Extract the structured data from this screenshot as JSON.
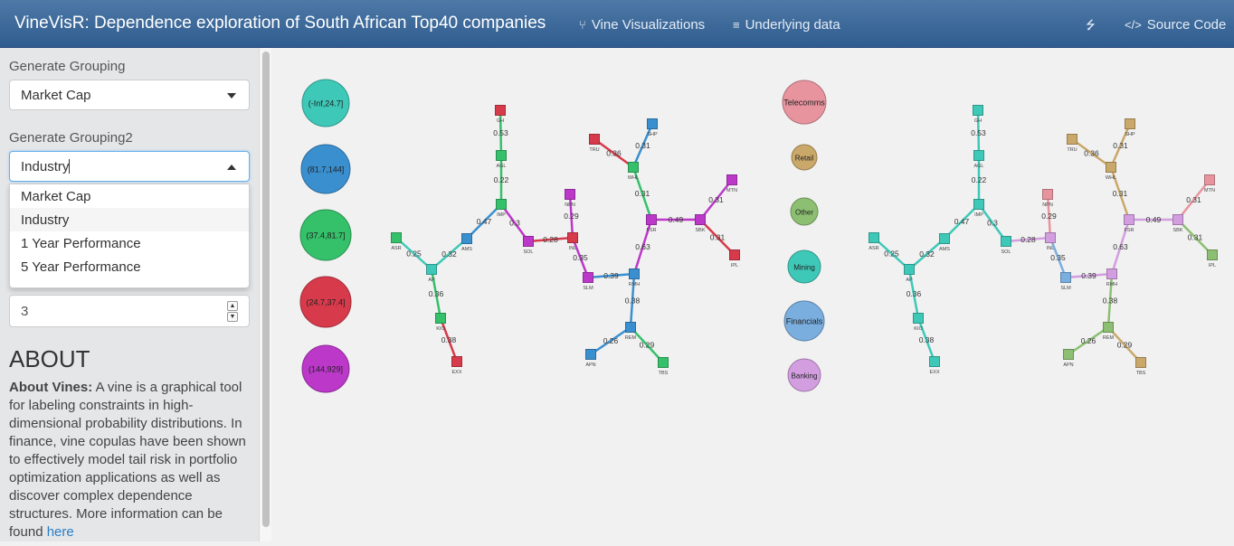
{
  "app": {
    "title": "VineVisR: Dependence exploration of South African Top40 companies",
    "nav": [
      {
        "label": "Vine Visualizations",
        "icon": "branch-icon"
      },
      {
        "label": "Underlying data",
        "icon": "database-icon"
      },
      {
        "label": "Source Code",
        "icon": "code-icon"
      }
    ],
    "share_icon": "share-icon"
  },
  "sidebar": {
    "grouping_label": "Generate Grouping",
    "grouping_value": "Market Cap",
    "grouping2_label": "Generate Grouping2",
    "grouping2_value": "Industry",
    "options": [
      "Market Cap",
      "Industry",
      "1 Year Performance",
      "5 Year Performance"
    ],
    "number_value": "3",
    "about_heading": "ABOUT",
    "about_bold": "About Vines:",
    "about_text": " A vine is a graphical tool for labeling constraints in high-dimensional probability distributions. In finance, vine copulas have been shown to effectively model tail risk in portfolio optimization applications as well as discover complex dependence structures. More information can be found ",
    "about_link": "here"
  },
  "legend1": [
    {
      "label": "(-Inf,24.7]",
      "color": "#3ec8b8"
    },
    {
      "label": "(81.7,144]",
      "color": "#3a8fcf"
    },
    {
      "label": "(37.4,81.7]",
      "color": "#35c06a"
    },
    {
      "label": "(24.7,37.4]",
      "color": "#d63a4b"
    },
    {
      "label": "(144,929]",
      "color": "#bb38c8"
    }
  ],
  "legend2": [
    {
      "label": "Telecomms",
      "color": "#e8949e"
    },
    {
      "label": "Retail",
      "color": "#c9a86a"
    },
    {
      "label": "Other",
      "color": "#8cbf72"
    },
    {
      "label": "Mining",
      "color": "#3ec8b8"
    },
    {
      "label": "Financials",
      "color": "#7aaede"
    },
    {
      "label": "Banking",
      "color": "#d29ee0"
    }
  ],
  "nodes": [
    {
      "id": "GH",
      "label": "GH"
    },
    {
      "id": "AGL",
      "label": "AGL"
    },
    {
      "id": "IMP",
      "label": "IMP"
    },
    {
      "id": "AMS",
      "label": "AMS"
    },
    {
      "id": "ASR",
      "label": "ASR"
    },
    {
      "id": "AP",
      "label": "AP"
    },
    {
      "id": "KIO",
      "label": "KIO"
    },
    {
      "id": "EXX",
      "label": "EXX"
    },
    {
      "id": "SOL",
      "label": "SOL"
    },
    {
      "id": "INL",
      "label": "INL"
    },
    {
      "id": "NPN",
      "label": "NPN"
    },
    {
      "id": "SLM",
      "label": "SLM"
    },
    {
      "id": "RMH",
      "label": "RMH"
    },
    {
      "id": "REM",
      "label": "REM"
    },
    {
      "id": "APN",
      "label": "APN"
    },
    {
      "id": "TBS",
      "label": "TBS"
    },
    {
      "id": "FSR",
      "label": "FSR"
    },
    {
      "id": "WHL",
      "label": "WHL"
    },
    {
      "id": "TRU",
      "label": "TRU"
    },
    {
      "id": "SHP",
      "label": "SHP"
    },
    {
      "id": "SBK",
      "label": "SBK"
    },
    {
      "id": "MTN",
      "label": "MTN"
    },
    {
      "id": "IPL",
      "label": "IPL"
    }
  ],
  "edges": [
    {
      "a": "GH",
      "b": "AGL",
      "w": "0.53"
    },
    {
      "a": "AGL",
      "b": "IMP",
      "w": "0.22"
    },
    {
      "a": "IMP",
      "b": "AMS",
      "w": "0.47"
    },
    {
      "a": "IMP",
      "b": "SOL",
      "w": "0.3"
    },
    {
      "a": "AMS",
      "b": "AP",
      "w": "0.32"
    },
    {
      "a": "ASR",
      "b": "AP",
      "w": "0.25"
    },
    {
      "a": "AP",
      "b": "KIO",
      "w": "0.36"
    },
    {
      "a": "KIO",
      "b": "EXX",
      "w": "0.38"
    },
    {
      "a": "SOL",
      "b": "INL",
      "w": "0.28"
    },
    {
      "a": "INL",
      "b": "NPN",
      "w": "0.29"
    },
    {
      "a": "INL",
      "b": "SLM",
      "w": "0.35"
    },
    {
      "a": "SLM",
      "b": "RMH",
      "w": "0.39"
    },
    {
      "a": "RMH",
      "b": "REM",
      "w": "0.38"
    },
    {
      "a": "REM",
      "b": "APN",
      "w": "0.26"
    },
    {
      "a": "REM",
      "b": "TBS",
      "w": "0.29"
    },
    {
      "a": "RMH",
      "b": "FSR",
      "w": "0.63"
    },
    {
      "a": "FSR",
      "b": "WHL",
      "w": "0.31"
    },
    {
      "a": "WHL",
      "b": "TRU",
      "w": "0.36"
    },
    {
      "a": "WHL",
      "b": "SHP",
      "w": "0.31"
    },
    {
      "a": "FSR",
      "b": "SBK",
      "w": "0.49"
    },
    {
      "a": "SBK",
      "b": "MTN",
      "w": "0.31"
    },
    {
      "a": "SBK",
      "b": "IPL",
      "w": "0.31"
    }
  ],
  "colors1": {
    "GH": "#d63a4b",
    "AGL": "#35c06a",
    "IMP": "#35c06a",
    "AMS": "#3a8fcf",
    "ASR": "#35c06a",
    "AP": "#3ec8b8",
    "KIO": "#35c06a",
    "EXX": "#d63a4b",
    "SOL": "#bb38c8",
    "INL": "#d63a4b",
    "NPN": "#bb38c8",
    "SLM": "#bb38c8",
    "RMH": "#3a8fcf",
    "REM": "#3a8fcf",
    "APN": "#3a8fcf",
    "TBS": "#35c06a",
    "FSR": "#bb38c8",
    "WHL": "#35c06a",
    "TRU": "#d63a4b",
    "SHP": "#3a8fcf",
    "SBK": "#bb38c8",
    "MTN": "#bb38c8",
    "IPL": "#d63a4b"
  },
  "colors2": {
    "GH": "#3ec8b8",
    "AGL": "#3ec8b8",
    "IMP": "#3ec8b8",
    "AMS": "#3ec8b8",
    "ASR": "#3ec8b8",
    "AP": "#3ec8b8",
    "KIO": "#3ec8b8",
    "EXX": "#3ec8b8",
    "SOL": "#3ec8b8",
    "INL": "#d29ee0",
    "NPN": "#e8949e",
    "SLM": "#7aaede",
    "RMH": "#d29ee0",
    "REM": "#8cbf72",
    "APN": "#8cbf72",
    "TBS": "#c9a86a",
    "FSR": "#d29ee0",
    "WHL": "#c9a86a",
    "TRU": "#c9a86a",
    "SHP": "#c9a86a",
    "SBK": "#d29ee0",
    "MTN": "#e8949e",
    "IPL": "#8cbf72"
  }
}
